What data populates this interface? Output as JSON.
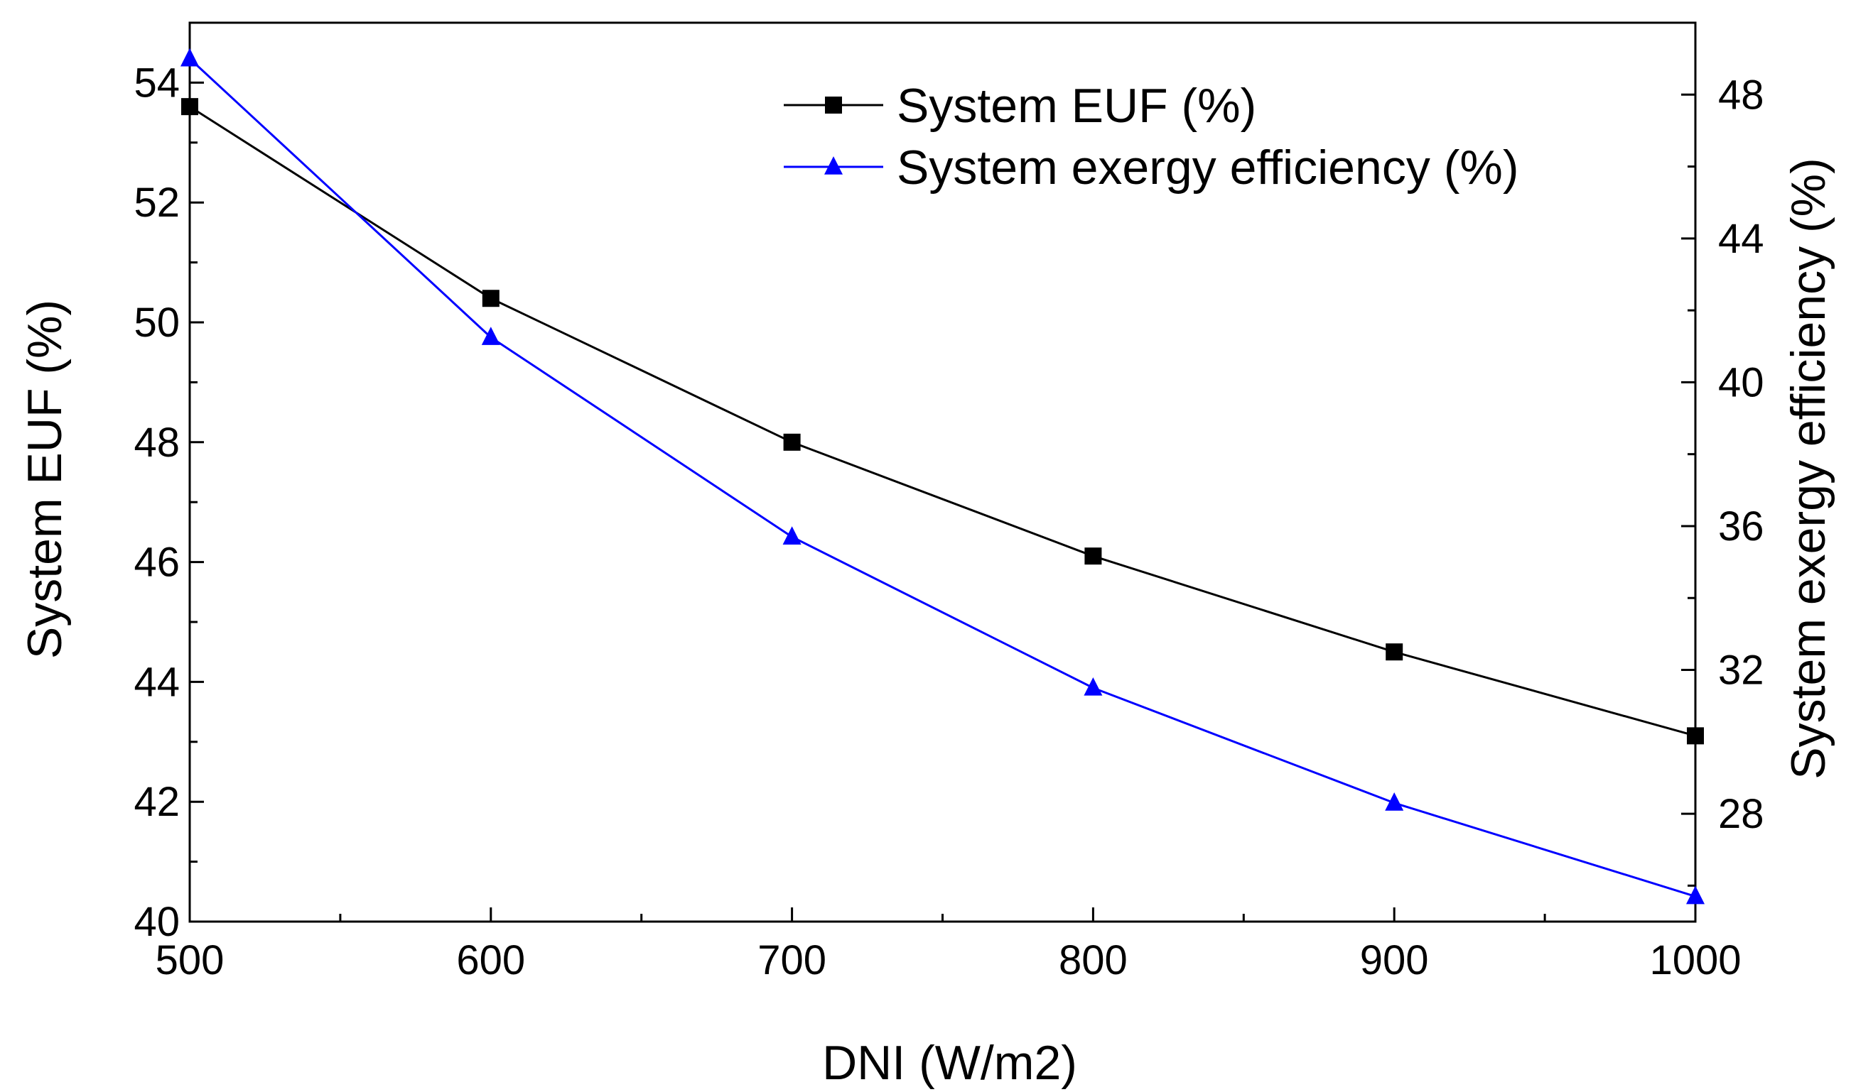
{
  "chart_data": {
    "type": "line",
    "title": "",
    "xlabel": "DNI (W/m2)",
    "ylabel_left": "System EUF (%)",
    "ylabel_right": "System exergy efficiency (%)",
    "x": [
      500,
      600,
      700,
      800,
      900,
      1000
    ],
    "xlim": [
      500,
      1000
    ],
    "x_ticks": [
      500,
      600,
      700,
      800,
      900,
      1000
    ],
    "y_left_lim": [
      40,
      55
    ],
    "y_left_ticks": [
      40,
      42,
      44,
      46,
      48,
      50,
      52,
      54
    ],
    "y_right_lim": [
      25,
      50
    ],
    "y_right_ticks": [
      28,
      32,
      36,
      40,
      44,
      48
    ],
    "grid": false,
    "legend_position": "top-center",
    "series": [
      {
        "name": "System EUF (%)",
        "axis": "left",
        "marker": "square",
        "color": "#000000",
        "values": [
          53.6,
          50.4,
          48.0,
          46.1,
          44.5,
          43.1
        ]
      },
      {
        "name": "System exergy efficiency (%)",
        "axis": "right",
        "marker": "triangle",
        "color": "#0000ff",
        "values": [
          49.0,
          41.25,
          35.7,
          31.5,
          28.3,
          25.7
        ]
      }
    ]
  }
}
